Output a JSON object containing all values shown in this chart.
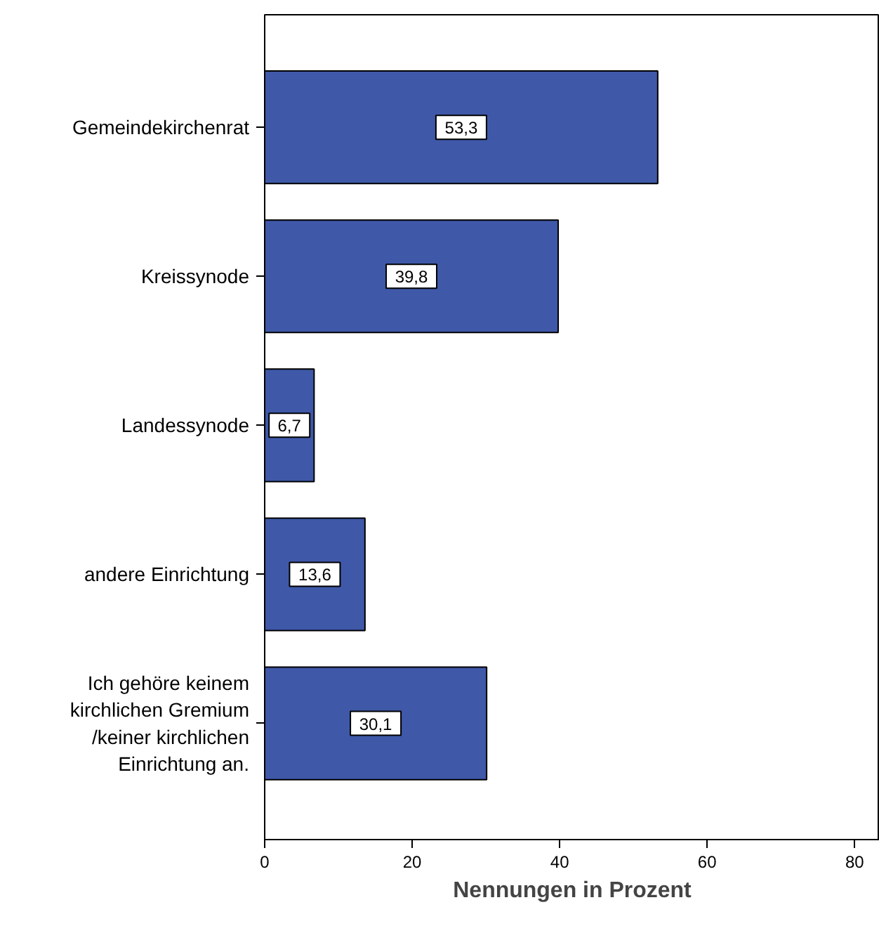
{
  "chart_data": {
    "type": "bar",
    "orientation": "horizontal",
    "xlabel": "Nennungen in Prozent",
    "categories": [
      "Gemeindekirchenrat",
      "Kreissynode",
      "Landessynode",
      "andere Einrichtung",
      "Ich gehöre keinem\nkirchlichen Gremium\n/keiner kirchlichen\nEinrichtung an."
    ],
    "values": [
      53.3,
      39.8,
      6.7,
      13.6,
      30.1
    ],
    "value_labels": [
      "53,3",
      "39,8",
      "6,7",
      "13,6",
      "30,1"
    ],
    "color": "#3f58a8",
    "xlim": [
      0,
      83.4
    ],
    "xticks": [
      0,
      20,
      40,
      60,
      80
    ],
    "grid": false
  }
}
